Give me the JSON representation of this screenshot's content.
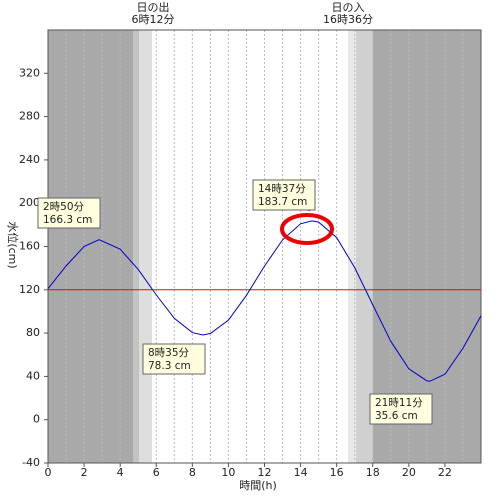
{
  "chart_data": {
    "type": "line",
    "x_label": "時間(h)",
    "y_label": "水位(cm)",
    "x": [
      0,
      1,
      2,
      2.83,
      4,
      5,
      6,
      7,
      8,
      8.58,
      9,
      10,
      11,
      12,
      13,
      14,
      14.62,
      15,
      16,
      17,
      18,
      19,
      20,
      21,
      21.18,
      22,
      23,
      24
    ],
    "series": [
      {
        "color": "#0000cc",
        "values": [
          121,
          142,
          160,
          166.3,
          157.5,
          138.8,
          115.3,
          93.7,
          80.5,
          78.3,
          79.6,
          92.0,
          114.9,
          141.9,
          166.1,
          181.0,
          183.7,
          182.5,
          168.2,
          140.5,
          106.2,
          72.4,
          47.0,
          35.9,
          35.6,
          42,
          66,
          96
        ]
      }
    ],
    "reference_line": {
      "value": 120,
      "color": "#ff0000"
    },
    "xlim": [
      0,
      24
    ],
    "xticks": [
      0,
      2,
      4,
      6,
      8,
      10,
      12,
      14,
      16,
      18,
      20,
      22
    ],
    "ylim": [
      -40,
      360
    ],
    "yticks": [
      -40,
      0,
      40,
      80,
      120,
      160,
      200,
      240,
      280,
      320
    ],
    "sun": [
      {
        "label": "日の出",
        "time": "6時12分"
      },
      {
        "label": "日の入",
        "time": "16時36分"
      }
    ],
    "annotations": [
      {
        "time": "2時50分",
        "level": "166.3 cm"
      },
      {
        "time": "8時35分",
        "level": "78.3 cm"
      },
      {
        "time": "14時37分",
        "level": "183.7 cm"
      },
      {
        "time": "21時11分",
        "level": "35.6 cm"
      }
    ]
  }
}
